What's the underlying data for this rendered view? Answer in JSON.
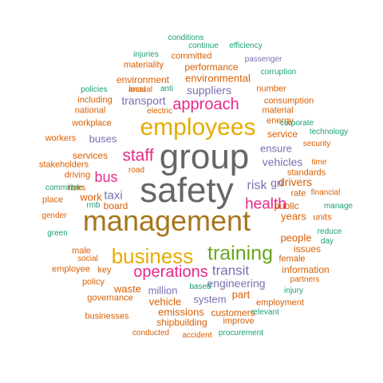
{
  "colors": {
    "teal": "#1b9e77",
    "orange": "#d95f02",
    "purple": "#7570b3",
    "pink": "#e7298a",
    "green": "#66a61e",
    "gold": "#e6ab02",
    "brown": "#a6761d",
    "gray": "#666666"
  },
  "words": [
    {
      "text": "conditions",
      "color": "teal"
    },
    {
      "text": "continue",
      "color": "teal"
    },
    {
      "text": "efficiency",
      "color": "teal"
    },
    {
      "text": "injuries",
      "color": "teal"
    },
    {
      "text": "committed",
      "color": "orange"
    },
    {
      "text": "passenger",
      "color": "purple"
    },
    {
      "text": "materiality",
      "color": "orange"
    },
    {
      "text": "performance",
      "color": "orange"
    },
    {
      "text": "corruption",
      "color": "teal"
    },
    {
      "text": "environment",
      "color": "orange"
    },
    {
      "text": "environmental",
      "color": "orange"
    },
    {
      "text": "policies",
      "color": "teal"
    },
    {
      "text": "local",
      "color": "orange"
    },
    {
      "text": "anti",
      "color": "teal"
    },
    {
      "text": "annual",
      "color": "orange"
    },
    {
      "text": "suppliers",
      "color": "purple"
    },
    {
      "text": "number",
      "color": "orange"
    },
    {
      "text": "including",
      "color": "orange"
    },
    {
      "text": "transport",
      "color": "purple"
    },
    {
      "text": "approach",
      "color": "pink"
    },
    {
      "text": "consumption",
      "color": "orange"
    },
    {
      "text": "national",
      "color": "orange"
    },
    {
      "text": "electric",
      "color": "orange"
    },
    {
      "text": "material",
      "color": "orange"
    },
    {
      "text": "energy",
      "color": "orange"
    },
    {
      "text": "workplace",
      "color": "orange"
    },
    {
      "text": "employees",
      "color": "gold"
    },
    {
      "text": "corporate",
      "color": "teal"
    },
    {
      "text": "technology",
      "color": "teal"
    },
    {
      "text": "workers",
      "color": "orange"
    },
    {
      "text": "buses",
      "color": "purple"
    },
    {
      "text": "service",
      "color": "orange"
    },
    {
      "text": "security",
      "color": "orange"
    },
    {
      "text": "staff",
      "color": "pink"
    },
    {
      "text": "ensure",
      "color": "purple"
    },
    {
      "text": "services",
      "color": "orange"
    },
    {
      "text": "group",
      "color": "gray"
    },
    {
      "text": "time",
      "color": "orange"
    },
    {
      "text": "stakeholders",
      "color": "orange"
    },
    {
      "text": "vehicles",
      "color": "purple"
    },
    {
      "text": "bus",
      "color": "pink"
    },
    {
      "text": "driving",
      "color": "orange"
    },
    {
      "text": "road",
      "color": "orange"
    },
    {
      "text": "gri",
      "color": "purple"
    },
    {
      "text": "standards",
      "color": "orange"
    },
    {
      "text": "drivers",
      "color": "orange"
    },
    {
      "text": "risk",
      "color": "purple"
    },
    {
      "text": "committee",
      "color": "teal"
    },
    {
      "text": "risks",
      "color": "orange"
    },
    {
      "text": "taxi",
      "color": "purple"
    },
    {
      "text": "rate",
      "color": "orange"
    },
    {
      "text": "financial",
      "color": "orange"
    },
    {
      "text": "safety",
      "color": "gray"
    },
    {
      "text": "place",
      "color": "orange"
    },
    {
      "text": "work",
      "color": "orange"
    },
    {
      "text": "rmb",
      "color": "teal"
    },
    {
      "text": "board",
      "color": "orange"
    },
    {
      "text": "health",
      "color": "pink"
    },
    {
      "text": "public",
      "color": "orange"
    },
    {
      "text": "manage",
      "color": "teal"
    },
    {
      "text": "gender",
      "color": "orange"
    },
    {
      "text": "years",
      "color": "orange"
    },
    {
      "text": "units",
      "color": "orange"
    },
    {
      "text": "management",
      "color": "brown"
    },
    {
      "text": "green",
      "color": "teal"
    },
    {
      "text": "reduce",
      "color": "teal"
    },
    {
      "text": "day",
      "color": "teal"
    },
    {
      "text": "people",
      "color": "orange"
    },
    {
      "text": "male",
      "color": "orange"
    },
    {
      "text": "business",
      "color": "gold"
    },
    {
      "text": "training",
      "color": "green"
    },
    {
      "text": "issues",
      "color": "orange"
    },
    {
      "text": "social",
      "color": "orange"
    },
    {
      "text": "female",
      "color": "orange"
    },
    {
      "text": "transit",
      "color": "purple"
    },
    {
      "text": "employee",
      "color": "orange"
    },
    {
      "text": "key",
      "color": "orange"
    },
    {
      "text": "operations",
      "color": "pink"
    },
    {
      "text": "information",
      "color": "orange"
    },
    {
      "text": "policy",
      "color": "orange"
    },
    {
      "text": "engineering",
      "color": "purple"
    },
    {
      "text": "partners",
      "color": "orange"
    },
    {
      "text": "waste",
      "color": "orange"
    },
    {
      "text": "million",
      "color": "purple"
    },
    {
      "text": "based",
      "color": "teal"
    },
    {
      "text": "part",
      "color": "orange"
    },
    {
      "text": "injury",
      "color": "teal"
    },
    {
      "text": "governance",
      "color": "orange"
    },
    {
      "text": "vehicle",
      "color": "orange"
    },
    {
      "text": "system",
      "color": "purple"
    },
    {
      "text": "employment",
      "color": "orange"
    },
    {
      "text": "emissions",
      "color": "orange"
    },
    {
      "text": "customers",
      "color": "orange"
    },
    {
      "text": "businesses",
      "color": "orange"
    },
    {
      "text": "shipbuilding",
      "color": "orange"
    },
    {
      "text": "improve",
      "color": "orange"
    },
    {
      "text": "relevant",
      "color": "teal"
    },
    {
      "text": "conducted",
      "color": "orange"
    },
    {
      "text": "accident",
      "color": "orange"
    },
    {
      "text": "procurement",
      "color": "teal"
    }
  ]
}
